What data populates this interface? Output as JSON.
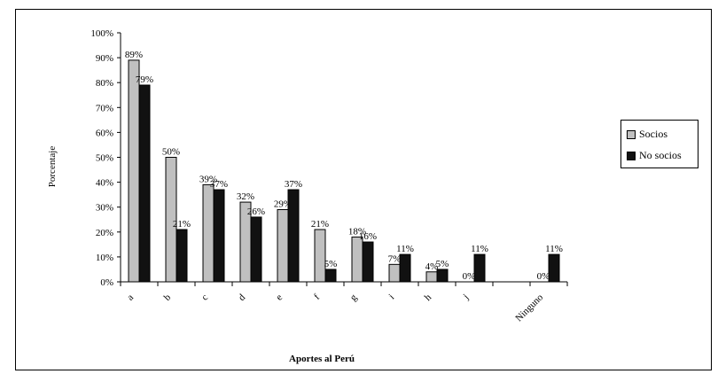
{
  "chart_data": {
    "type": "bar",
    "ylabel": "Porcentaje",
    "xlabel": "Aportes al Perú",
    "ylim": [
      0,
      100
    ],
    "y_tick_labels": [
      "0%",
      "10%",
      "20%",
      "30%",
      "40%",
      "50%",
      "60%",
      "70%",
      "80%",
      "90%",
      "100%"
    ],
    "categories": [
      "a",
      "b",
      "c",
      "d",
      "e",
      "f",
      "g",
      "i",
      "h",
      "j",
      "",
      "Ninguno"
    ],
    "series": [
      {
        "name": "Socios",
        "color": "#c0c0c0",
        "values": [
          89,
          50,
          39,
          32,
          29,
          21,
          18,
          7,
          4,
          0,
          null,
          0
        ],
        "labels": [
          "89%",
          "50%",
          "39%",
          "32%",
          "29%",
          "21%",
          "18%",
          "7%",
          "4%",
          "0%",
          "",
          "0%"
        ]
      },
      {
        "name": "No socios",
        "color": "#111111",
        "values": [
          79,
          21,
          37,
          26,
          37,
          5,
          16,
          11,
          5,
          11,
          null,
          11
        ],
        "labels": [
          "79%",
          "21%",
          "37%",
          "26%",
          "37%",
          "5%",
          "16%",
          "11%",
          "5%",
          "11%",
          "",
          "11%"
        ]
      }
    ],
    "legend": {
      "placement": "right",
      "items": [
        "Socios",
        "No socios"
      ]
    },
    "grid": false
  }
}
